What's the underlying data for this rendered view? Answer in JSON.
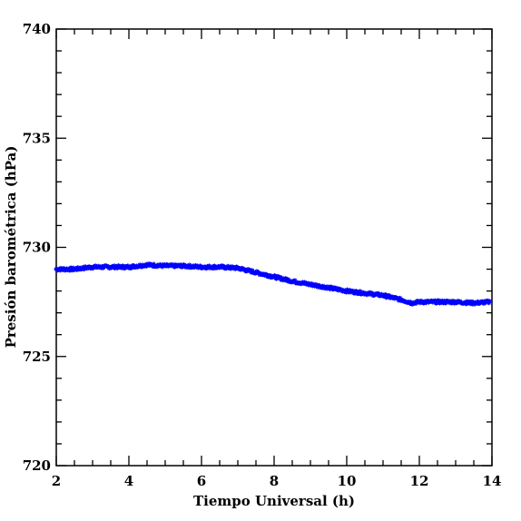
{
  "chart_data": {
    "type": "scatter",
    "xlabel": "Tiempo Universal (h)",
    "ylabel": "Presión barométrica (hPa)",
    "xlim": [
      2,
      14
    ],
    "ylim": [
      720,
      740
    ],
    "xticks": [
      "2",
      "4",
      "6",
      "8",
      "10",
      "12",
      "14"
    ],
    "yticks": [
      "720",
      "725",
      "730",
      "735",
      "740"
    ],
    "grid": false,
    "marker": "star",
    "series": [
      {
        "color": "#0000ff",
        "x": [
          2.0,
          2.5,
          3.0,
          3.5,
          4.0,
          4.5,
          5.0,
          5.5,
          6.0,
          6.5,
          7.0,
          7.5,
          8.0,
          8.5,
          9.0,
          9.5,
          10.0,
          10.5,
          11.0,
          11.5,
          11.8,
          12.0,
          12.5,
          13.0,
          13.5,
          13.95
        ],
        "y": [
          729.0,
          729.0,
          729.1,
          729.1,
          729.1,
          729.2,
          729.15,
          729.15,
          729.1,
          729.1,
          729.05,
          728.85,
          728.65,
          728.45,
          728.3,
          728.15,
          728.0,
          727.9,
          727.8,
          727.6,
          727.45,
          727.5,
          727.5,
          727.5,
          727.45,
          727.5
        ]
      }
    ]
  }
}
